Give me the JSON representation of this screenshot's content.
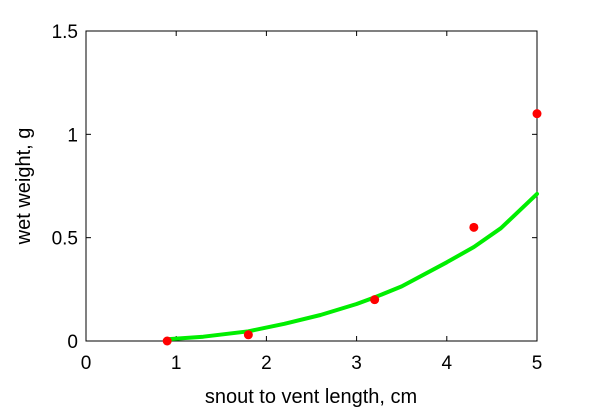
{
  "chart_data": {
    "type": "scatter",
    "title": "",
    "xlabel": "snout to vent length, cm",
    "ylabel": "wet weight, g",
    "xlim": [
      0,
      5
    ],
    "ylim": [
      0,
      1.5
    ],
    "x_ticks": [
      0,
      1,
      2,
      3,
      4,
      5
    ],
    "x_tick_labels": [
      "0",
      "1",
      "2",
      "3",
      "4",
      "5"
    ],
    "y_ticks": [
      0,
      0.5,
      1,
      1.5
    ],
    "y_tick_labels": [
      "0",
      "0.5",
      "1",
      "1.5"
    ],
    "grid": false,
    "legend": "none",
    "series": [
      {
        "kind": "points",
        "color": "#ff0000",
        "x": [
          0.9,
          1.8,
          3.2,
          4.3,
          5.0
        ],
        "y": [
          0.0,
          0.03,
          0.2,
          0.55,
          1.1
        ]
      },
      {
        "kind": "line",
        "color": "#00ee00",
        "x": [
          0.9,
          1.3,
          1.8,
          2.2,
          2.6,
          3.0,
          3.2,
          3.5,
          4.0,
          4.3,
          4.6,
          5.0
        ],
        "y": [
          0.008,
          0.021,
          0.047,
          0.083,
          0.126,
          0.179,
          0.211,
          0.264,
          0.381,
          0.455,
          0.546,
          0.712
        ]
      }
    ]
  }
}
